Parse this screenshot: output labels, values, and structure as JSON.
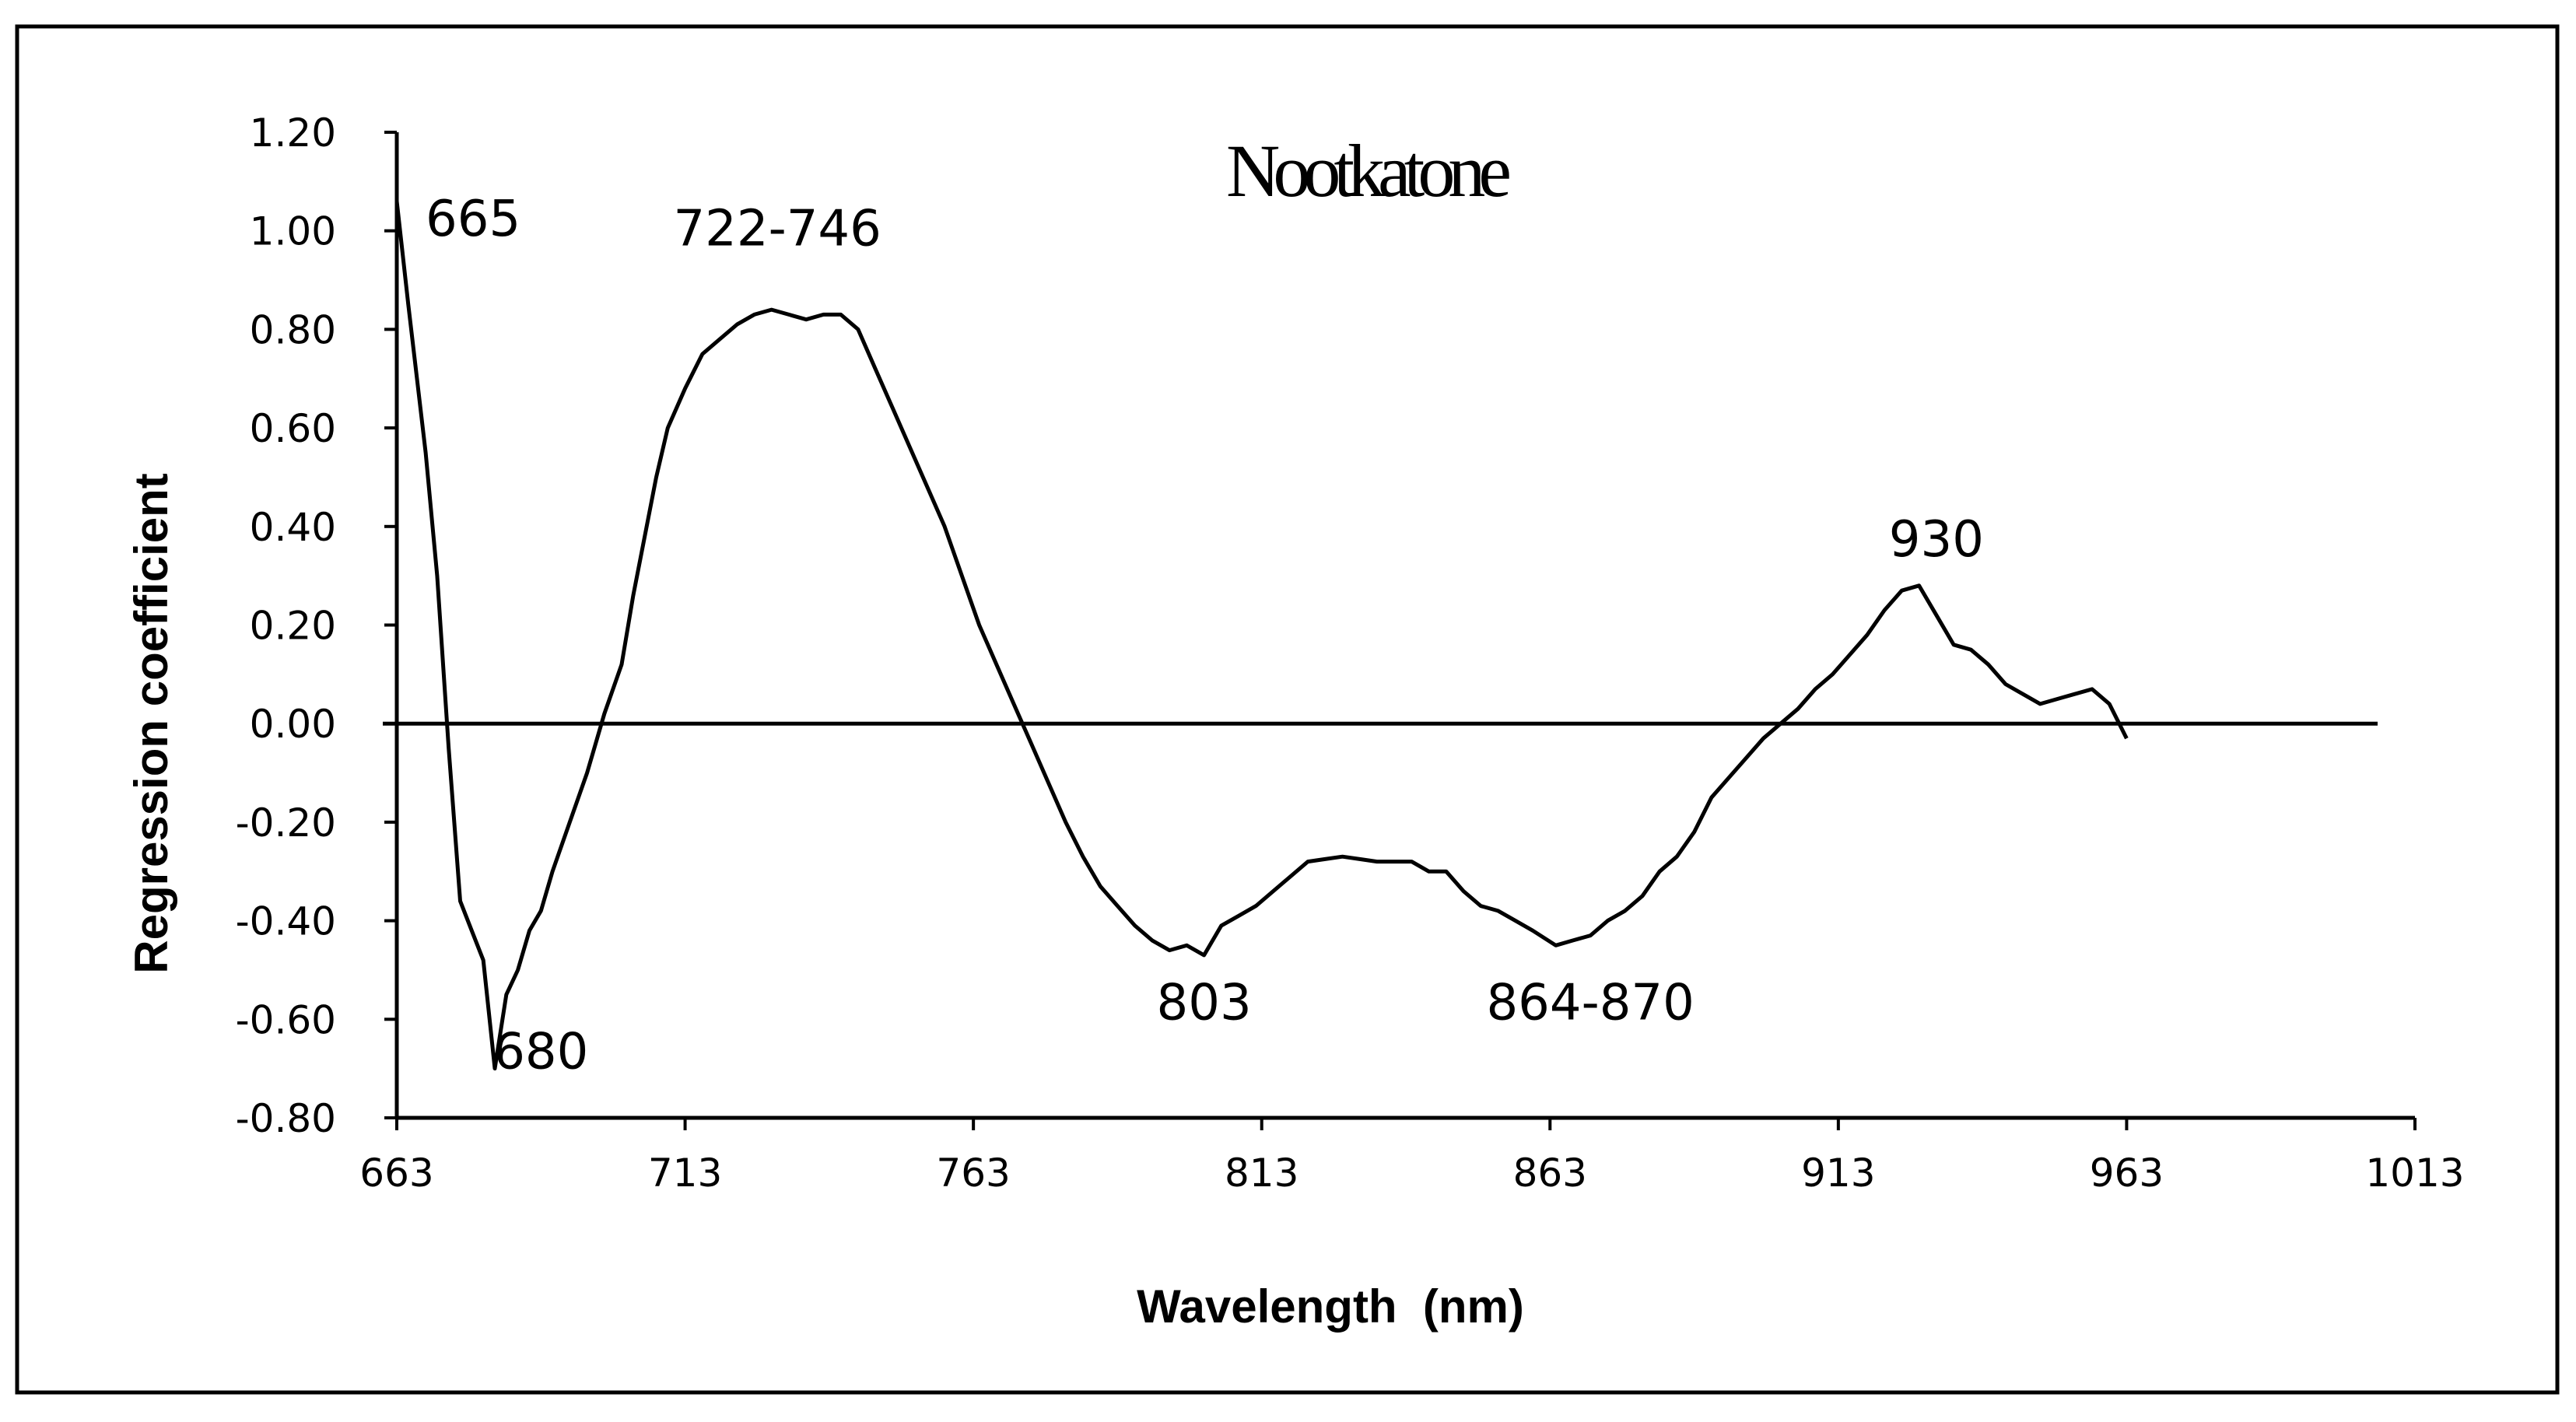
{
  "chart_data": {
    "type": "line",
    "title": "Nootkatone",
    "xlabel": "Wavelength  (nm)",
    "ylabel": "Regression coefficient",
    "xlim": [
      663,
      1013
    ],
    "ylim": [
      -0.8,
      1.2
    ],
    "x_ticks": [
      "663",
      "713",
      "763",
      "813",
      "863",
      "913",
      "963",
      "1013"
    ],
    "y_ticks": [
      "1.20",
      "1.00",
      "0.80",
      "0.60",
      "0.40",
      "0.20",
      "0.00",
      "-0.20",
      "-0.40",
      "-0.60",
      "-0.80"
    ],
    "grid": false,
    "legend": "none",
    "series": [
      {
        "x": [
          663,
          665,
          668,
          670,
          672,
          674,
          676,
          678,
          680,
          682,
          684,
          686,
          688,
          690,
          693,
          696,
          699,
          702,
          704,
          706,
          708,
          710,
          713,
          716,
          719,
          722,
          725,
          728,
          731,
          734,
          737,
          740,
          743,
          746,
          749,
          752,
          755,
          758,
          761,
          764,
          767,
          770,
          773,
          776,
          779,
          782,
          785,
          788,
          791,
          794,
          797,
          800,
          803,
          806,
          809,
          812,
          815,
          818,
          821,
          824,
          827,
          830,
          833,
          836,
          839,
          842,
          845,
          848,
          851,
          854,
          857,
          860,
          864,
          867,
          870,
          873,
          876,
          879,
          882,
          885,
          888,
          891,
          894,
          897,
          900,
          903,
          906,
          909,
          912,
          915,
          918,
          921,
          924,
          927,
          930,
          933,
          936,
          939,
          942,
          945,
          948,
          951,
          954,
          957,
          960,
          963
        ],
        "y": [
          1.06,
          0.85,
          0.55,
          0.3,
          -0.05,
          -0.36,
          -0.42,
          -0.48,
          -0.7,
          -0.55,
          -0.5,
          -0.42,
          -0.38,
          -0.3,
          -0.2,
          -0.1,
          0.02,
          0.12,
          0.26,
          0.38,
          0.5,
          0.6,
          0.68,
          0.75,
          0.78,
          0.81,
          0.83,
          0.84,
          0.83,
          0.82,
          0.83,
          0.83,
          0.8,
          0.72,
          0.64,
          0.56,
          0.48,
          0.4,
          0.3,
          0.2,
          0.12,
          0.04,
          -0.04,
          -0.12,
          -0.2,
          -0.27,
          -0.33,
          -0.37,
          -0.41,
          -0.44,
          -0.46,
          -0.45,
          -0.47,
          -0.41,
          -0.39,
          -0.37,
          -0.34,
          -0.31,
          -0.28,
          -0.275,
          -0.27,
          -0.275,
          -0.28,
          -0.28,
          -0.28,
          -0.3,
          -0.3,
          -0.34,
          -0.37,
          -0.38,
          -0.4,
          -0.42,
          -0.45,
          -0.44,
          -0.43,
          -0.4,
          -0.38,
          -0.35,
          -0.3,
          -0.27,
          -0.22,
          -0.15,
          -0.11,
          -0.07,
          -0.03,
          0.0,
          0.03,
          0.07,
          0.1,
          0.14,
          0.18,
          0.23,
          0.27,
          0.28,
          0.22,
          0.16,
          0.15,
          0.12,
          0.08,
          0.06,
          0.04,
          0.05,
          0.06,
          0.07,
          0.04,
          -0.03
        ]
      }
    ],
    "annotations": [
      {
        "text": "665",
        "x": 668,
        "y": 0.99
      },
      {
        "text": "722-746",
        "x": 729,
        "y": 0.97
      },
      {
        "text": "680",
        "x": 688,
        "y": -0.7
      },
      {
        "text": "803",
        "x": 803,
        "y": -0.6
      },
      {
        "text": "864-870",
        "x": 870,
        "y": -0.6
      },
      {
        "text": "930",
        "x": 930,
        "y": 0.34
      }
    ]
  }
}
